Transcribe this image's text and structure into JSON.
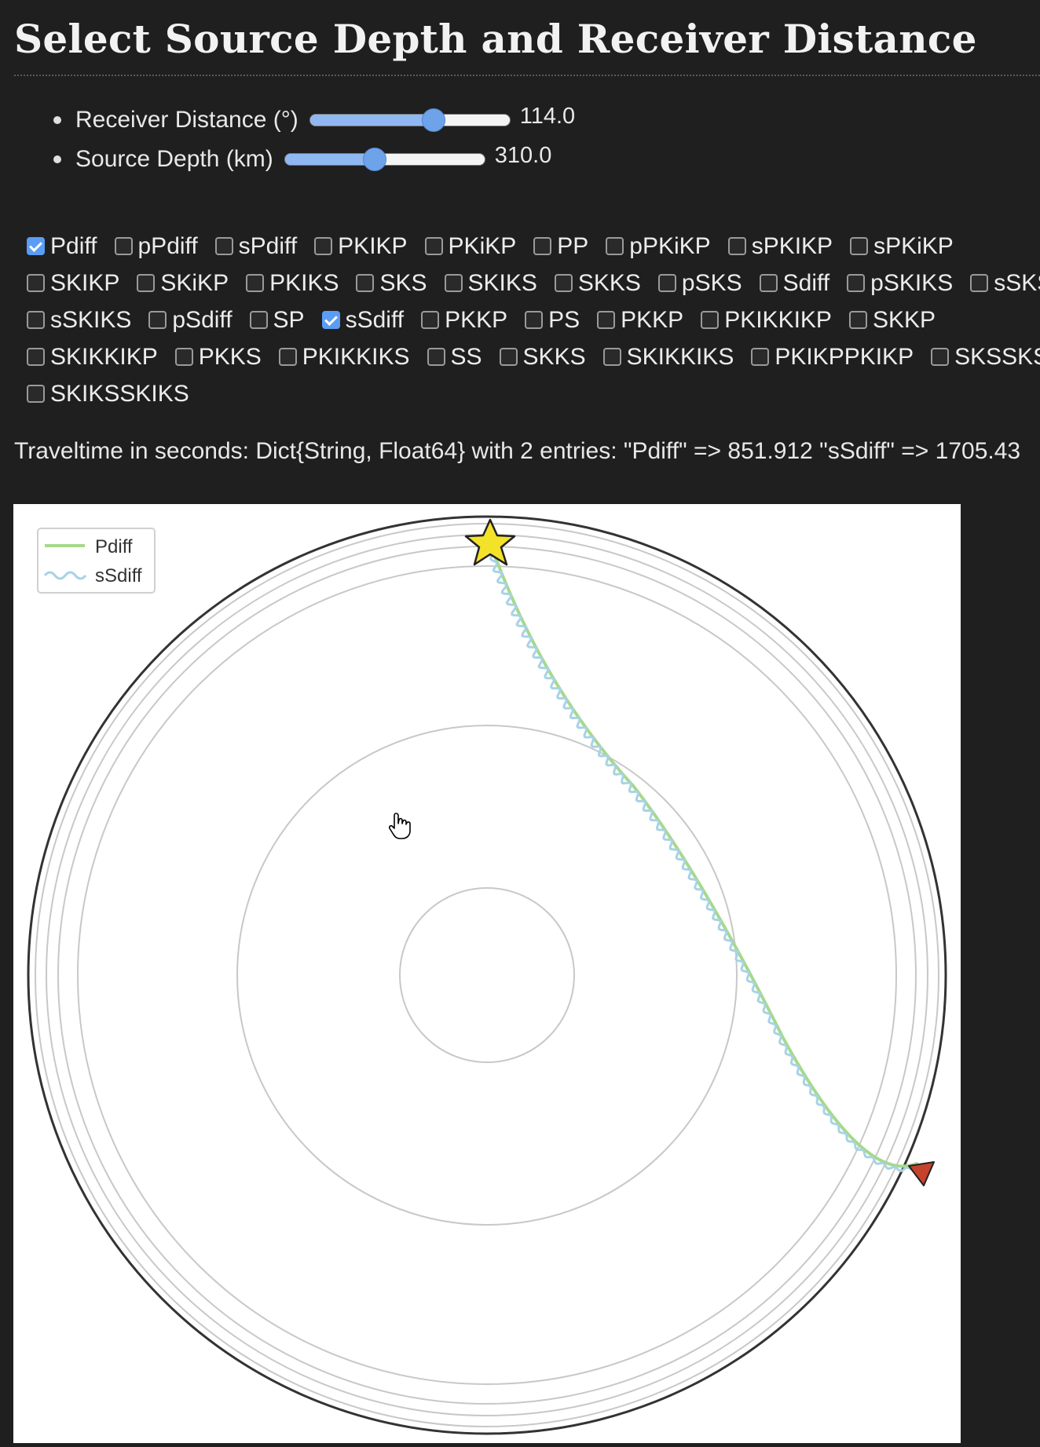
{
  "title": "Select Source Depth and Receiver Distance",
  "sliders": [
    {
      "label": "Receiver Distance (°)",
      "value": "114.0",
      "fraction": 0.62
    },
    {
      "label": "Source Depth (km)",
      "value": "310.0",
      "fraction": 0.45
    }
  ],
  "checkbox_rows": [
    [
      {
        "label": "Pdiff",
        "checked": true
      },
      {
        "label": "pPdiff",
        "checked": false
      },
      {
        "label": "sPdiff",
        "checked": false
      },
      {
        "label": "PKIKP",
        "checked": false
      },
      {
        "label": "PKiKP",
        "checked": false
      },
      {
        "label": "PP",
        "checked": false
      },
      {
        "label": "pPKiKP",
        "checked": false
      },
      {
        "label": "sPKIKP",
        "checked": false
      },
      {
        "label": "sPKiKP",
        "checked": false
      }
    ],
    [
      {
        "label": "SKIKP",
        "checked": false
      },
      {
        "label": "SKiKP",
        "checked": false
      },
      {
        "label": "PKIKS",
        "checked": false
      },
      {
        "label": "SKS",
        "checked": false
      },
      {
        "label": "SKIKS",
        "checked": false
      },
      {
        "label": "SKKS",
        "checked": false
      },
      {
        "label": "pSKS",
        "checked": false
      },
      {
        "label": "Sdiff",
        "checked": false
      },
      {
        "label": "pSKIKS",
        "checked": false
      },
      {
        "label": "sSKS",
        "checked": false
      }
    ],
    [
      {
        "label": "sSKIKS",
        "checked": false
      },
      {
        "label": "pSdiff",
        "checked": false
      },
      {
        "label": "SP",
        "checked": false
      },
      {
        "label": "sSdiff",
        "checked": true
      },
      {
        "label": "PKKP",
        "checked": false
      },
      {
        "label": "PS",
        "checked": false
      },
      {
        "label": "PKKP",
        "checked": false
      },
      {
        "label": "PKIKKIKP",
        "checked": false
      },
      {
        "label": "SKKP",
        "checked": false
      }
    ],
    [
      {
        "label": "SKIKKIKP",
        "checked": false
      },
      {
        "label": "PKKS",
        "checked": false
      },
      {
        "label": "PKIKKIKS",
        "checked": false
      },
      {
        "label": "SS",
        "checked": false
      },
      {
        "label": "SKKS",
        "checked": false
      },
      {
        "label": "SKIKKIKS",
        "checked": false
      },
      {
        "label": "PKIKPPKIKP",
        "checked": false
      },
      {
        "label": "SKSSKS",
        "checked": false
      }
    ],
    [
      {
        "label": "SKIKSSKIKS",
        "checked": false
      }
    ]
  ],
  "traveltime": "Traveltime in seconds: Dict{String, Float64} with 2 entries: \"Pdiff\" => 851.912 \"sSdiff\" => 1705.43",
  "plot": {
    "legend": [
      {
        "name": "Pdiff",
        "color": "#a6d98b",
        "style": "solid"
      },
      {
        "name": "sSdiff",
        "color": "#a7d3e6",
        "style": "wavy"
      }
    ],
    "colors": {
      "source_star": "#f3e22a",
      "receiver_triangle": "#c5432d",
      "layers": "#c8c8c8",
      "surface": "#333333"
    }
  }
}
